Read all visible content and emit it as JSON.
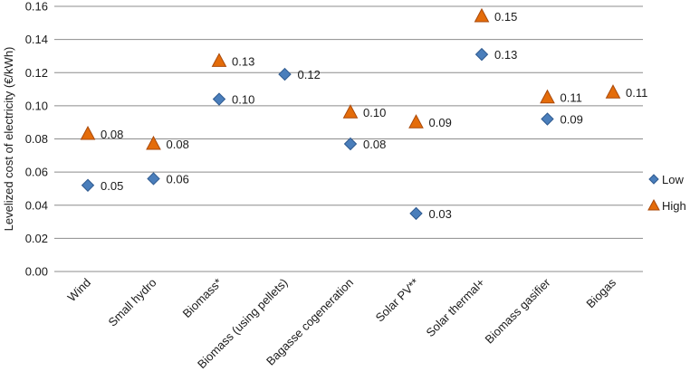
{
  "chart_data": {
    "type": "scatter",
    "title": "",
    "xlabel": "",
    "ylabel": "Levelized cost of electricity (€/kWh)",
    "ylim": [
      0,
      0.16
    ],
    "ytick_step": 0.02,
    "ytick_labels": [
      "0.00",
      "0.02",
      "0.04",
      "0.06",
      "0.08",
      "0.10",
      "0.12",
      "0.14",
      "0.16"
    ],
    "grid": true,
    "legend_position": "right",
    "categories": [
      "Wind",
      "Small hydro",
      "Biomass*",
      "Biomass (using pellets)",
      "Bagasse cogeneration",
      "Solar PV**",
      "Solar thermal+",
      "Biomass gasifier",
      "Biogas"
    ],
    "series": [
      {
        "name": "Low",
        "marker": "diamond",
        "color": "#4a7ebb",
        "values": [
          0.052,
          0.056,
          0.104,
          0.119,
          0.077,
          0.035,
          0.131,
          0.092,
          null
        ],
        "labels": [
          "0.05",
          "0.06",
          "0.10",
          "0.12",
          "0.08",
          "0.03",
          "0.13",
          "0.09",
          null
        ]
      },
      {
        "name": "High",
        "marker": "triangle",
        "color": "#e46c0a",
        "values": [
          0.083,
          0.077,
          0.127,
          null,
          0.096,
          0.09,
          0.154,
          0.105,
          0.108
        ],
        "labels": [
          "0.08",
          "0.08",
          "0.13",
          null,
          "0.10",
          "0.09",
          "0.15",
          "0.11",
          "0.11"
        ]
      }
    ]
  }
}
